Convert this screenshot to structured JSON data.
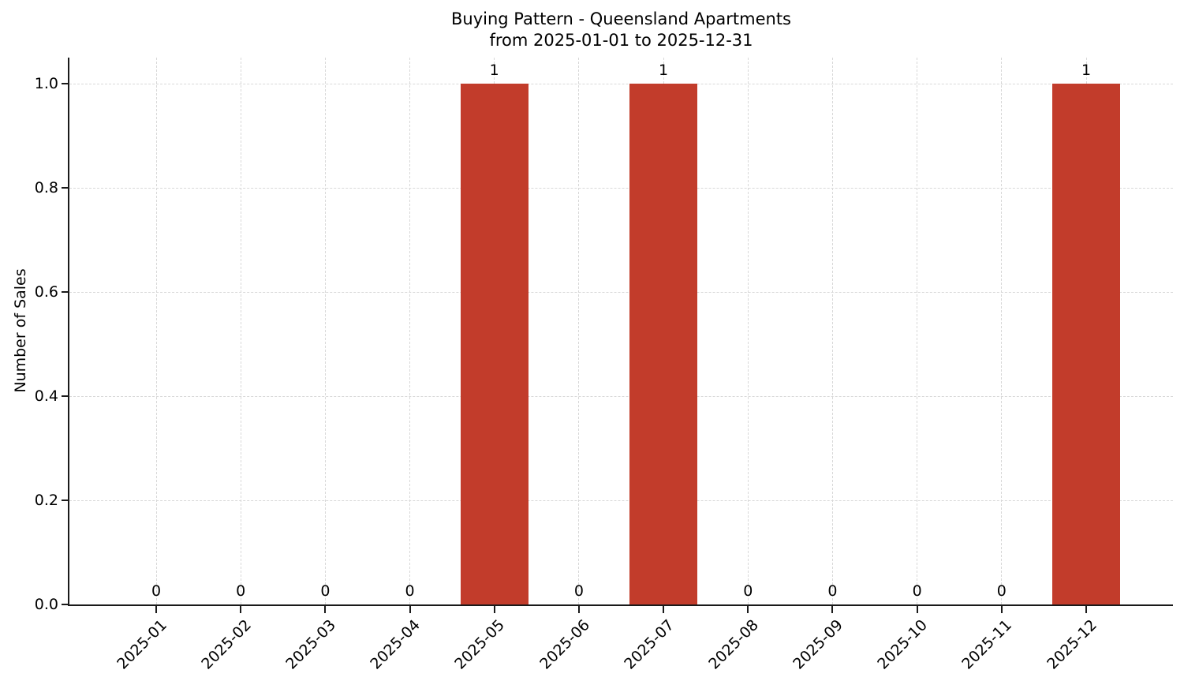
{
  "chart_data": {
    "type": "bar",
    "title": "Buying Pattern - Queensland Apartments",
    "subtitle": "from 2025-01-01 to 2025-12-31",
    "title_lines": [
      "Buying Pattern - Queensland Apartments",
      "from 2025-01-01 to 2025-12-31"
    ],
    "xlabel": "",
    "ylabel": "Number of Sales",
    "categories": [
      "2025-01",
      "2025-02",
      "2025-03",
      "2025-04",
      "2025-05",
      "2025-06",
      "2025-07",
      "2025-08",
      "2025-09",
      "2025-10",
      "2025-11",
      "2025-12"
    ],
    "values": [
      0,
      0,
      0,
      0,
      1,
      0,
      1,
      0,
      0,
      0,
      0,
      1
    ],
    "bar_labels": [
      "0",
      "0",
      "0",
      "0",
      "1",
      "0",
      "1",
      "0",
      "0",
      "0",
      "0",
      "1"
    ],
    "ytick_values": [
      0.0,
      0.2,
      0.4,
      0.6,
      0.8,
      1.0
    ],
    "ytick_labels": [
      "0.0",
      "0.2",
      "0.4",
      "0.6",
      "0.8",
      "1.0"
    ],
    "ylim": [
      0,
      1.05
    ],
    "bar_color": "#c23c2b",
    "grid": "dashed",
    "grid_color": "#d8d8d8",
    "axis_color": "#1a1a1a",
    "legend_position": "none",
    "x_tick_rotation_deg": 45
  }
}
